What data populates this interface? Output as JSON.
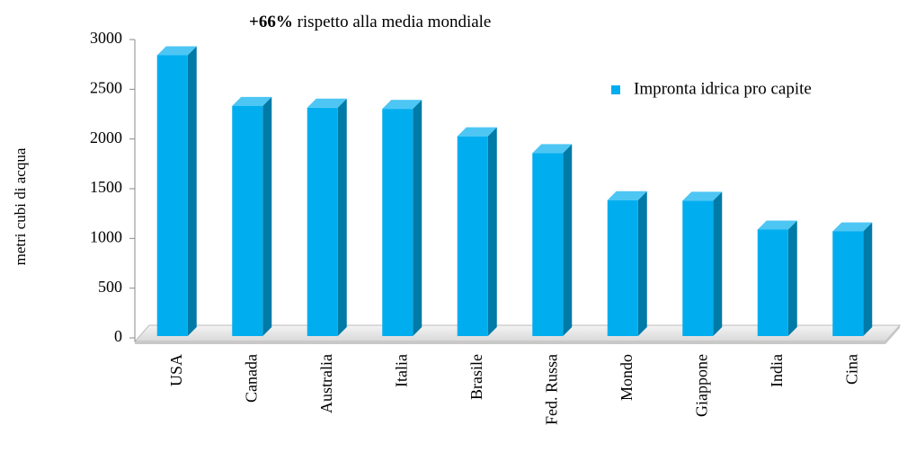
{
  "chart_data": {
    "type": "bar",
    "y_label": "metri cubi di acqua",
    "annotation": {
      "bold": "+66%",
      "text": "rispetto alla media mondiale"
    },
    "categories": [
      "USA",
      "Canada",
      "Australia",
      "Italia",
      "Brasile",
      "Fed. Russa",
      "Mondo",
      "Giappone",
      "India",
      "Cina"
    ],
    "series": [
      {
        "name": "Impronta idrica pro capite",
        "color": "#00aeef",
        "values": [
          2842,
          2333,
          2315,
          2303,
          2027,
          1858,
          1385,
          1379,
          1089,
          1071
        ]
      }
    ],
    "ylim": [
      0,
      3000
    ],
    "yticks": [
      0,
      500,
      1000,
      1500,
      2000,
      2500,
      3000
    ],
    "legend": "upper right"
  }
}
